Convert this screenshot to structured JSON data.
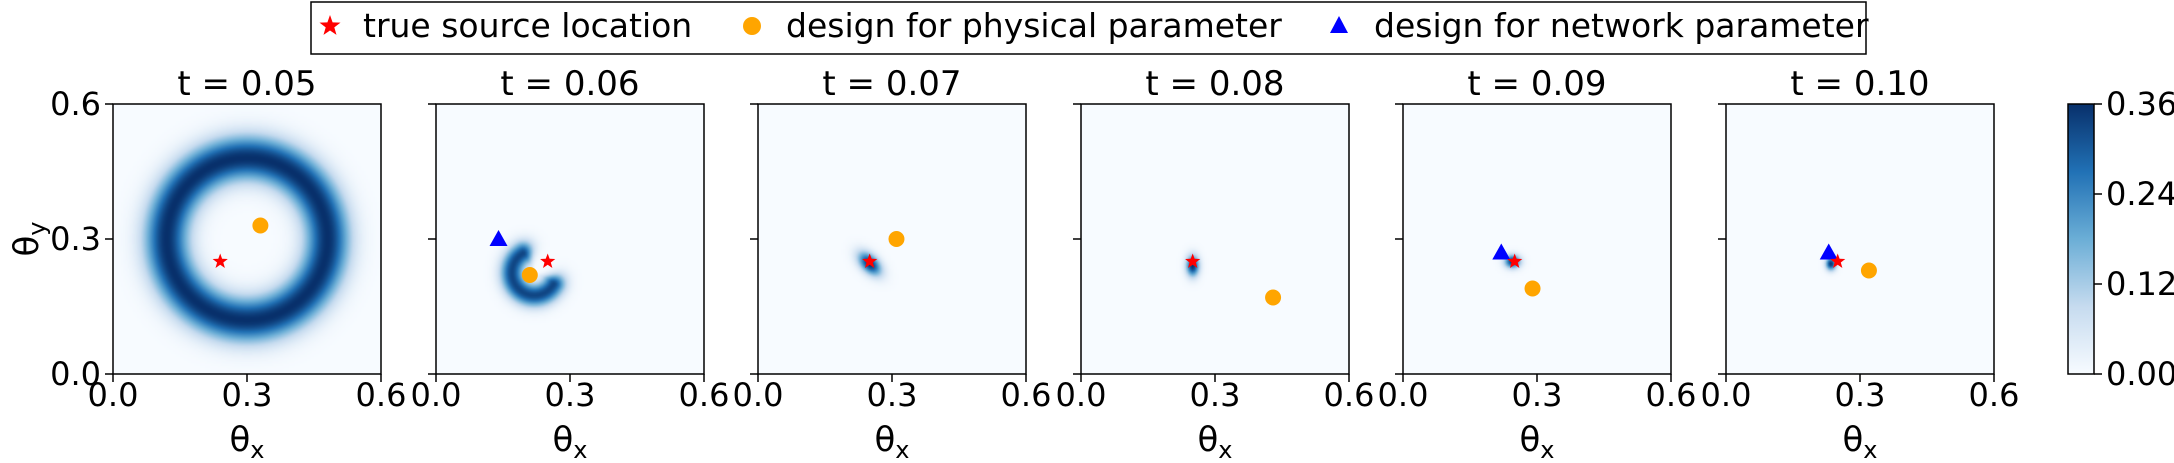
{
  "legend": [
    {
      "label": "true source location",
      "marker": "star",
      "color": "#ff0000"
    },
    {
      "label": "design for physical parameter",
      "marker": "circle",
      "color": "#ffa500"
    },
    {
      "label": "design for network parameter",
      "marker": "triangle",
      "color": "#0000ff"
    }
  ],
  "colormap": {
    "low": "#f7fbff",
    "mid": "#6baed6",
    "high": "#08306b"
  },
  "colorbar": {
    "min": 0.0,
    "max": 0.36,
    "ticks": [
      "0.00",
      "0.12",
      "0.24",
      "0.36"
    ]
  },
  "chart_data": [
    {
      "type": "heatmap",
      "title": "t = 0.05",
      "xlabel": "θx",
      "ylabel": "θy",
      "xlim": [
        0,
        0.6
      ],
      "ylim": [
        0,
        0.6
      ],
      "xticks": [
        "0.0",
        "0.3",
        "0.6"
      ],
      "yticks": [
        "0.0",
        "0.3",
        "0.6"
      ],
      "density": {
        "shape": "ring",
        "center": [
          0.3,
          0.3
        ],
        "radius": 0.18,
        "width": 0.035,
        "peak": 0.36
      },
      "true_source": [
        0.24,
        0.25
      ],
      "physical_design": [
        0.33,
        0.33
      ],
      "network_design": null
    },
    {
      "type": "heatmap",
      "title": "t = 0.06",
      "xlabel": "θx",
      "ylabel": "θy",
      "xlim": [
        0,
        0.6
      ],
      "ylim": [
        0,
        0.6
      ],
      "xticks": [
        "0.0",
        "0.3",
        "0.6"
      ],
      "yticks": [
        "0.0",
        "0.3",
        "0.6"
      ],
      "density": {
        "shape": "arc",
        "center": [
          0.22,
          0.225
        ],
        "radius": 0.05,
        "width": 0.018,
        "start_deg": 120,
        "end_deg": 330,
        "peak": 0.33
      },
      "true_source": [
        0.25,
        0.25
      ],
      "physical_design": [
        0.21,
        0.22
      ],
      "network_design": [
        0.14,
        0.3
      ]
    },
    {
      "type": "heatmap",
      "title": "t = 0.07",
      "xlabel": "θx",
      "ylabel": "θy",
      "xlim": [
        0,
        0.6
      ],
      "ylim": [
        0,
        0.6
      ],
      "xticks": [
        "0.0",
        "0.3",
        "0.6"
      ],
      "yticks": [
        "0.0",
        "0.3",
        "0.6"
      ],
      "density": {
        "shape": "blob",
        "center": [
          0.25,
          0.245
        ],
        "sx": 0.022,
        "sy": 0.013,
        "angle_deg": -45,
        "peak": 0.36
      },
      "true_source": [
        0.25,
        0.25
      ],
      "physical_design": [
        0.31,
        0.3
      ],
      "network_design": null
    },
    {
      "type": "heatmap",
      "title": "t = 0.08",
      "xlabel": "θx",
      "ylabel": "θy",
      "xlim": [
        0,
        0.6
      ],
      "ylim": [
        0,
        0.6
      ],
      "xticks": [
        "0.0",
        "0.3",
        "0.6"
      ],
      "yticks": [
        "0.0",
        "0.3",
        "0.6"
      ],
      "density": {
        "shape": "blob",
        "center": [
          0.25,
          0.24
        ],
        "sx": 0.01,
        "sy": 0.016,
        "angle_deg": 0,
        "peak": 0.36
      },
      "true_source": [
        0.25,
        0.25
      ],
      "physical_design": [
        0.43,
        0.17
      ],
      "network_design": null
    },
    {
      "type": "heatmap",
      "title": "t = 0.09",
      "xlabel": "θx",
      "ylabel": "θy",
      "xlim": [
        0,
        0.6
      ],
      "ylim": [
        0,
        0.6
      ],
      "xticks": [
        "0.0",
        "0.3",
        "0.6"
      ],
      "yticks": [
        "0.0",
        "0.3",
        "0.6"
      ],
      "density": {
        "shape": "blob",
        "center": [
          0.245,
          0.25
        ],
        "sx": 0.012,
        "sy": 0.01,
        "angle_deg": 0,
        "peak": 0.36
      },
      "true_source": [
        0.25,
        0.25
      ],
      "physical_design": [
        0.29,
        0.19
      ],
      "network_design": [
        0.22,
        0.27
      ]
    },
    {
      "type": "heatmap",
      "title": "t = 0.10",
      "xlabel": "θx",
      "ylabel": "θy",
      "xlim": [
        0,
        0.6
      ],
      "ylim": [
        0,
        0.6
      ],
      "xticks": [
        "0.0",
        "0.3",
        "0.6"
      ],
      "yticks": [
        "0.0",
        "0.3",
        "0.6"
      ],
      "density": {
        "shape": "blob",
        "center": [
          0.235,
          0.245
        ],
        "sx": 0.008,
        "sy": 0.01,
        "angle_deg": 0,
        "peak": 0.36
      },
      "true_source": [
        0.25,
        0.25
      ],
      "physical_design": [
        0.32,
        0.23
      ],
      "network_design": [
        0.23,
        0.27
      ]
    }
  ]
}
